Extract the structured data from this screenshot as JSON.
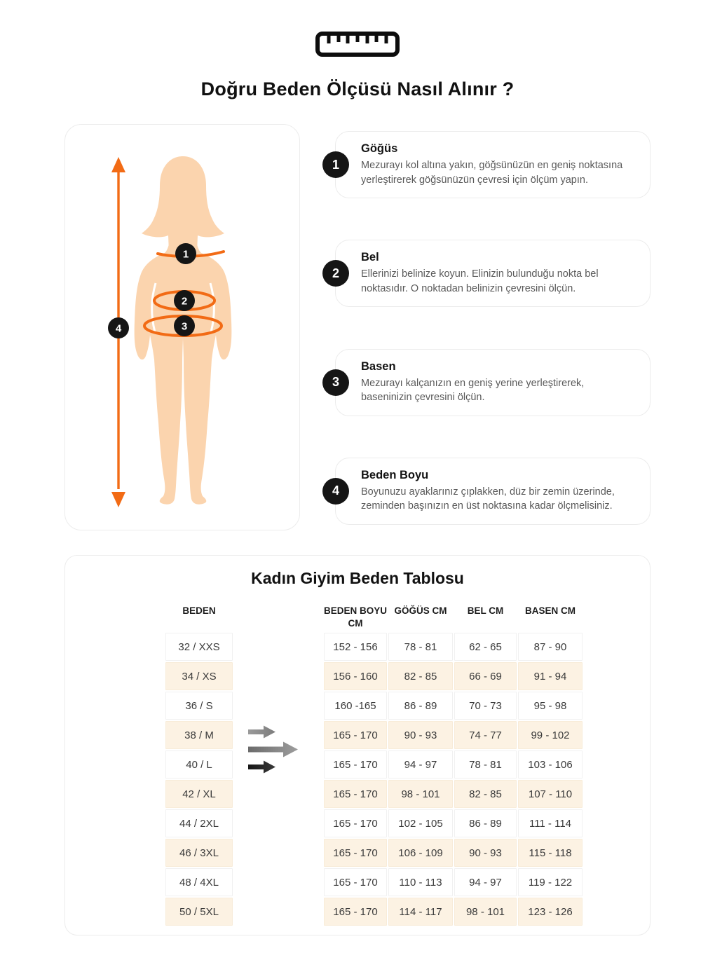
{
  "page": {
    "title": "Doğru Beden Ölçüsü Nasıl Alınır ?"
  },
  "colors": {
    "accent_orange": "#F26B15",
    "skin": "#FBD4AE",
    "badge_black": "#151515",
    "row_alt_bg": "#FCF2E3"
  },
  "figure": {
    "markers": [
      "1",
      "2",
      "3",
      "4"
    ]
  },
  "instructions": [
    {
      "number": "1",
      "title": "Göğüs",
      "text": "Mezurayı kol altına yakın, göğsünüzün en geniş noktasına yerleştirerek göğsünüzün çevresi için ölçüm yapın."
    },
    {
      "number": "2",
      "title": "Bel",
      "text": "Ellerinizi belinize koyun. Elinizin bulunduğu nokta bel noktasıdır. O noktadan belinizin çevresini ölçün."
    },
    {
      "number": "3",
      "title": "Basen",
      "text": "Mezurayı kalçanızın en geniş yerine yerleştirerek, baseninizin çevresini ölçün."
    },
    {
      "number": "4",
      "title": "Beden Boyu",
      "text": "Boyunuzu ayaklarınız çıplakken, düz bir zemin üzerinde, zeminden başınızın en üst noktasına kadar ölçmelisiniz."
    }
  ],
  "size_table": {
    "title": "Kadın Giyim Beden Tablosu",
    "columns": [
      "BEDEN",
      "BEDEN BOYU CM",
      "GÖĞÜS CM",
      "BEL CM",
      "BASEN CM"
    ],
    "rows": [
      {
        "size": "32 / XXS",
        "height": "152 - 156",
        "chest": "78 - 81",
        "waist": "62 - 65",
        "hip": "87 - 90"
      },
      {
        "size": "34 / XS",
        "height": "156 - 160",
        "chest": "82 - 85",
        "waist": "66 - 69",
        "hip": "91 - 94"
      },
      {
        "size": "36 / S",
        "height": "160 -165",
        "chest": "86 - 89",
        "waist": "70 - 73",
        "hip": "95 - 98"
      },
      {
        "size": "38 / M",
        "height": "165 - 170",
        "chest": "90 - 93",
        "waist": "74 - 77",
        "hip": "99 - 102"
      },
      {
        "size": "40 / L",
        "height": "165 - 170",
        "chest": "94 - 97",
        "waist": "78 - 81",
        "hip": "103 - 106"
      },
      {
        "size": "42 / XL",
        "height": "165 - 170",
        "chest": "98 - 101",
        "waist": "82 - 85",
        "hip": "107 - 110"
      },
      {
        "size": "44 / 2XL",
        "height": "165 - 170",
        "chest": "102 - 105",
        "waist": "86 - 89",
        "hip": "111 - 114"
      },
      {
        "size": "46 / 3XL",
        "height": "165 - 170",
        "chest": "106 - 109",
        "waist": "90 - 93",
        "hip": "115 - 118"
      },
      {
        "size": "48 / 4XL",
        "height": "165 - 170",
        "chest": "110 - 113",
        "waist": "94 - 97",
        "hip": "119 - 122"
      },
      {
        "size": "50 / 5XL",
        "height": "165 - 170",
        "chest": "114 - 117",
        "waist": "98 - 101",
        "hip": "123 - 126"
      }
    ]
  }
}
